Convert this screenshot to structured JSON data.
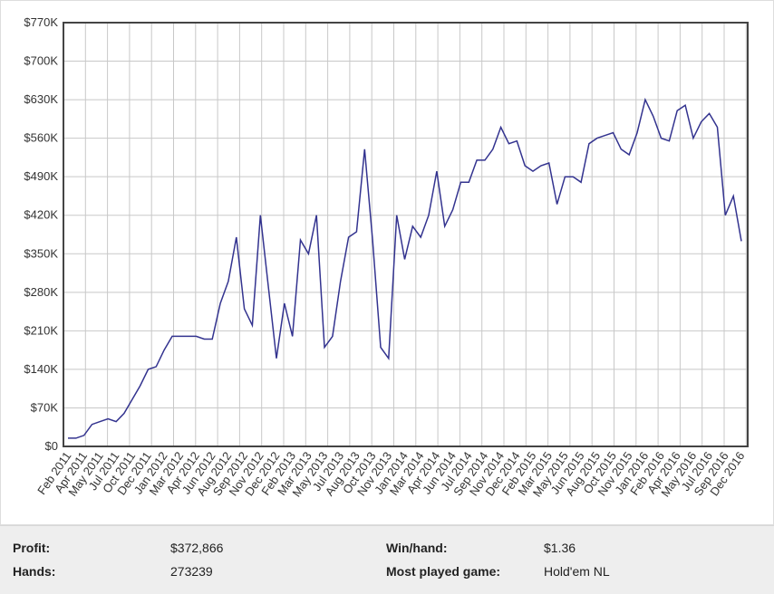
{
  "chart_data": {
    "type": "line",
    "color": "#33338f",
    "grid": true,
    "categories": [
      "Feb 2011",
      null,
      "Apr 2011",
      null,
      "May 2011",
      null,
      "Jul 2011",
      null,
      "Oct 2011",
      null,
      "Dec 2011",
      null,
      "Jan 2012",
      null,
      "Mar 2012",
      null,
      "Apr 2012",
      null,
      "Jun 2012",
      null,
      "Aug 2012",
      null,
      "Sep 2012",
      null,
      "Nov 2012",
      null,
      "Dec 2012",
      null,
      "Feb 2013",
      null,
      "Mar 2013",
      null,
      "May 2013",
      null,
      "Jul 2013",
      null,
      "Aug 2013",
      null,
      "Oct 2013",
      null,
      "Nov 2013",
      null,
      "Jan 2014",
      null,
      "Mar 2014",
      null,
      "Apr 2014",
      null,
      "Jun 2014",
      null,
      "Jul 2014",
      null,
      "Sep 2014",
      null,
      "Nov 2014",
      null,
      "Dec 2014",
      null,
      "Feb 2015",
      null,
      "Mar 2015",
      null,
      "May 2015",
      null,
      "Jun 2015",
      null,
      "Aug 2015",
      null,
      "Oct 2015",
      null,
      "Nov 2015",
      null,
      "Jan 2016",
      null,
      "Feb 2016",
      null,
      "Apr 2016",
      null,
      "May 2016",
      null,
      "Jul 2016",
      null,
      "Sep 2016",
      null,
      "Dec 2016"
    ],
    "values": [
      15000,
      15000,
      20000,
      40000,
      45000,
      50000,
      45000,
      60000,
      85000,
      110000,
      140000,
      145000,
      175000,
      200000,
      200000,
      200000,
      200000,
      195000,
      195000,
      260000,
      300000,
      380000,
      250000,
      220000,
      420000,
      290000,
      160000,
      260000,
      200000,
      375000,
      350000,
      420000,
      180000,
      200000,
      300000,
      380000,
      390000,
      540000,
      375000,
      180000,
      160000,
      420000,
      340000,
      400000,
      380000,
      420000,
      500000,
      400000,
      430000,
      480000,
      480000,
      520000,
      520000,
      540000,
      580000,
      550000,
      555000,
      510000,
      500000,
      510000,
      515000,
      440000,
      490000,
      490000,
      480000,
      550000,
      560000,
      565000,
      570000,
      540000,
      530000,
      570000,
      630000,
      600000,
      560000,
      555000,
      610000,
      620000,
      560000,
      590000,
      605000,
      580000,
      420000,
      455000,
      372866
    ],
    "ylim": [
      0,
      770000
    ],
    "yticks": [
      {
        "value": 0,
        "label": "$0"
      },
      {
        "value": 70000,
        "label": "$70K"
      },
      {
        "value": 140000,
        "label": "$140K"
      },
      {
        "value": 210000,
        "label": "$210K"
      },
      {
        "value": 280000,
        "label": "$280K"
      },
      {
        "value": 350000,
        "label": "$350K"
      },
      {
        "value": 420000,
        "label": "$420K"
      },
      {
        "value": 490000,
        "label": "$490K"
      },
      {
        "value": 560000,
        "label": "$560K"
      },
      {
        "value": 630000,
        "label": "$630K"
      },
      {
        "value": 700000,
        "label": "$700K"
      },
      {
        "value": 770000,
        "label": "$770K"
      }
    ]
  },
  "stats": {
    "profit_label": "Profit:",
    "profit": "$372,866",
    "hands_label": "Hands:",
    "hands": "273239",
    "win_label": "Win/hand:",
    "win": "$1.36",
    "game_label": "Most played game:",
    "game": "Hold'em NL"
  }
}
